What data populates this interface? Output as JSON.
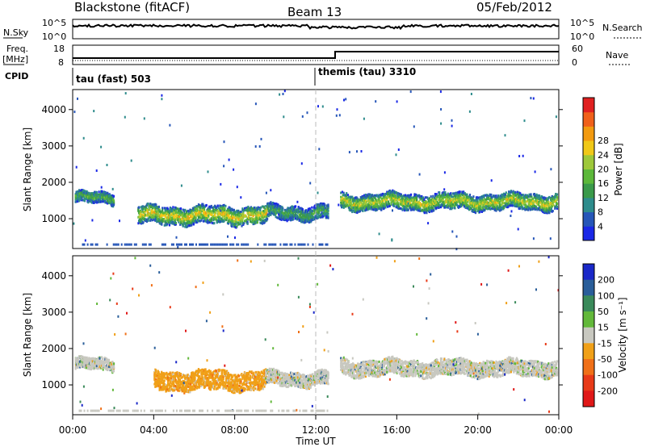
{
  "header": {
    "station": "Blackstone (fitACF)",
    "beam": "Beam 13",
    "date": "05/Feb/2012"
  },
  "summary": {
    "nsky_label": "N.Sky",
    "nsky_ticks": [
      "10^5",
      "10^0"
    ],
    "nsearch_label": "N.Search",
    "nsearch_ticks": [
      "10^5",
      "10^0"
    ],
    "freq_label": "Freq.",
    "freq_unit": "[MHz]",
    "freq_ticks": [
      "18",
      "8"
    ],
    "nave_label": "Nave",
    "nave_ticks": [
      "60",
      "0"
    ],
    "cpid_label": "CPID",
    "cpid_segments": [
      {
        "label": "tau (fast) 503",
        "start_hour": 0
      },
      {
        "label": "themis (tau) 3310",
        "start_hour": 12
      }
    ]
  },
  "chart_data": [
    {
      "type": "heatmap",
      "title": "Power",
      "xlabel": "Time UT",
      "ylabel": "Slant Range [km]",
      "x_ticks": [
        "00:00",
        "04:00",
        "08:00",
        "12:00",
        "16:00",
        "20:00",
        "00:00"
      ],
      "xlim_hours": [
        0,
        24
      ],
      "ylim": [
        180,
        4550
      ],
      "y_ticks": [
        1000,
        2000,
        3000,
        4000
      ],
      "colorbar_label": "Power [dB]",
      "colorbar_ticks": [
        "4",
        "8",
        "12",
        "16",
        "20",
        "24",
        "28"
      ],
      "colorbar_colors": [
        "#1a28e6",
        "#2656b8",
        "#2e8c8c",
        "#3a9a4a",
        "#5cb83a",
        "#9ec83a",
        "#f0c818",
        "#f29a10",
        "#f0601a",
        "#e02020"
      ],
      "bands": [
        {
          "x0": 0.1,
          "x1": 2.0,
          "center": 1550,
          "width": 300,
          "level": 0.3
        },
        {
          "x0": 3.2,
          "x1": 9.6,
          "center": 1080,
          "width": 480,
          "level": 0.55
        },
        {
          "x0": 9.6,
          "x1": 12.6,
          "center": 1150,
          "width": 380,
          "level": 0.25
        },
        {
          "x0": 13.2,
          "x1": 23.9,
          "center": 1450,
          "width": 430,
          "level": 0.5
        }
      ]
    },
    {
      "type": "heatmap",
      "title": "Velocity",
      "xlabel": "Time UT",
      "ylabel": "Slant Range [km]",
      "x_ticks": [
        "00:00",
        "04:00",
        "08:00",
        "12:00",
        "16:00",
        "20:00",
        "00:00"
      ],
      "xlim_hours": [
        0,
        24
      ],
      "ylim": [
        180,
        4550
      ],
      "y_ticks": [
        1000,
        2000,
        3000,
        4000
      ],
      "colorbar_label": "Velocity [m s⁻¹]",
      "colorbar_ticks": [
        "200",
        "100",
        "50",
        "15",
        "-15",
        "-50",
        "-100",
        "-200"
      ],
      "colorbar_colors": [
        "#1a28c8",
        "#2a5e9a",
        "#3a8a5a",
        "#62b83a",
        "#c8c8c0",
        "#f0a018",
        "#f07018",
        "#e83a18",
        "#e01818"
      ],
      "bands": [
        {
          "x0": 0.1,
          "x1": 2.0,
          "center": 1550,
          "width": 300,
          "kind": "grey"
        },
        {
          "x0": 4.0,
          "x1": 9.5,
          "center": 1100,
          "width": 520,
          "kind": "orange"
        },
        {
          "x0": 9.5,
          "x1": 12.6,
          "center": 1150,
          "width": 380,
          "kind": "grey"
        },
        {
          "x0": 13.2,
          "x1": 23.9,
          "center": 1450,
          "width": 430,
          "kind": "grey"
        }
      ]
    }
  ]
}
